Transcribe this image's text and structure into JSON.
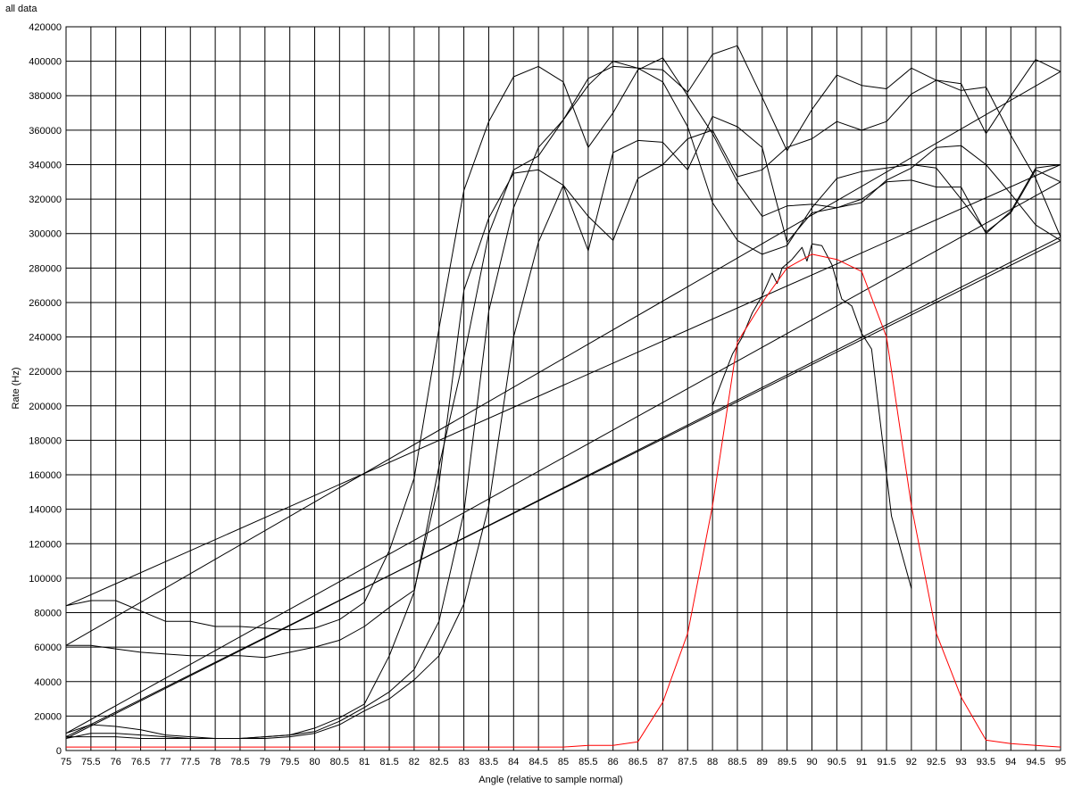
{
  "chart_data": {
    "type": "line",
    "title": "all data",
    "xlabel": "Angle (relative to sample normal)",
    "ylabel": "Rate (Hz)",
    "xlim": [
      75,
      95
    ],
    "ylim": [
      0,
      420000
    ],
    "x_ticks": [
      "75",
      "75.5",
      "76",
      "76.5",
      "77",
      "77.5",
      "78",
      "78.5",
      "79",
      "79.5",
      "80",
      "80.5",
      "81",
      "81.5",
      "82",
      "82.5",
      "83",
      "83.5",
      "84",
      "84.5",
      "85",
      "85.5",
      "86",
      "86.5",
      "87",
      "87.5",
      "88",
      "88.5",
      "89",
      "89.5",
      "90",
      "90.5",
      "91",
      "91.5",
      "92",
      "92.5",
      "93",
      "93.5",
      "94",
      "94.5",
      "95"
    ],
    "y_ticks": [
      "0",
      "20000",
      "40000",
      "60000",
      "80000",
      "100000",
      "120000",
      "140000",
      "160000",
      "180000",
      "200000",
      "220000",
      "240000",
      "260000",
      "280000",
      "300000",
      "320000",
      "340000",
      "360000",
      "380000",
      "400000",
      "420000"
    ],
    "grid": true,
    "legend": "none",
    "series": [
      {
        "color": "#000000",
        "x": [
          75,
          75.5,
          76,
          76.5,
          77,
          77.5,
          78,
          78.5,
          79,
          79.5,
          80,
          80.5,
          81,
          81.5,
          82,
          82.5,
          83,
          83.5,
          84,
          84.5,
          85,
          85.5,
          86,
          86.5,
          87,
          87.5,
          88,
          88.5,
          89,
          89.5,
          90,
          90.5,
          91,
          91.5,
          92,
          92.5,
          93,
          93.5,
          94,
          94.5,
          95,
          75
        ],
        "y": [
          84000,
          87000,
          87000,
          81000,
          75000,
          75000,
          72000,
          72000,
          71000,
          70000,
          71000,
          76000,
          86000,
          116000,
          158000,
          245000,
          325000,
          365000,
          391000,
          397000,
          388000,
          350000,
          370000,
          395000,
          402000,
          380000,
          358000,
          330000,
          310000,
          316000,
          317000,
          315000,
          320000,
          330000,
          331000,
          327000,
          327000,
          300000,
          313000,
          338000,
          340000,
          84000
        ]
      },
      {
        "color": "#000000",
        "x": [
          75,
          75.5,
          76,
          76.5,
          77,
          77.5,
          78,
          78.5,
          79,
          79.5,
          80,
          80.5,
          81,
          81.5,
          82,
          82.5,
          83,
          83.5,
          84,
          84.5,
          85,
          85.5,
          86,
          86.5,
          87,
          87.5,
          88,
          88.5,
          89,
          89.5,
          90,
          90.5,
          91,
          91.5,
          92,
          92.5,
          93,
          93.5,
          94,
          94.5,
          95,
          75
        ],
        "y": [
          61000,
          61000,
          59000,
          57000,
          56000,
          55000,
          55000,
          55000,
          54000,
          57000,
          60000,
          64000,
          72000,
          83000,
          93000,
          155000,
          267000,
          309000,
          335000,
          337000,
          328000,
          310000,
          296000,
          332000,
          340000,
          355000,
          360000,
          333000,
          337000,
          350000,
          355000,
          365000,
          360000,
          365000,
          381000,
          389000,
          387000,
          358000,
          380000,
          401000,
          394000,
          61000
        ]
      },
      {
        "color": "#000000",
        "x": [
          75,
          75.5,
          76,
          76.5,
          77,
          77.5,
          78,
          78.5,
          79,
          79.5,
          80,
          80.5,
          81,
          81.5,
          82,
          82.5,
          83,
          83.5,
          84,
          84.5,
          85,
          85.5,
          86,
          86.5,
          87,
          87.5,
          88,
          88.5,
          89,
          89.5,
          90,
          90.5,
          91,
          91.5,
          92,
          92.5,
          93,
          93.5,
          94,
          94.5,
          95,
          75
        ],
        "y": [
          10000,
          15000,
          14000,
          12000,
          9000,
          8000,
          7000,
          7000,
          8000,
          9000,
          13000,
          19000,
          27000,
          55000,
          92000,
          165000,
          228000,
          300000,
          337000,
          345000,
          366000,
          386000,
          400000,
          396000,
          388000,
          362000,
          318000,
          296000,
          288000,
          293000,
          315000,
          332000,
          336000,
          338000,
          340000,
          338000,
          320000,
          301000,
          312000,
          337000,
          330000,
          10000
        ]
      },
      {
        "color": "#000000",
        "x": [
          75,
          75.5,
          76,
          76.5,
          77,
          77.5,
          78,
          78.5,
          79,
          79.5,
          80,
          80.5,
          81,
          81.5,
          82,
          82.5,
          83,
          83.5,
          84,
          84.5,
          85,
          85.5,
          86,
          86.5,
          87,
          87.5,
          88,
          88.5,
          89,
          89.5,
          90,
          90.5,
          91,
          91.5,
          92,
          92.5,
          93,
          93.5,
          94,
          94.5,
          95,
          75
        ],
        "y": [
          7000,
          10000,
          10000,
          9000,
          8000,
          7000,
          7000,
          7000,
          8000,
          9000,
          11000,
          17000,
          25000,
          34000,
          47000,
          75000,
          138000,
          255000,
          315000,
          350000,
          366000,
          390000,
          397000,
          396000,
          395000,
          382000,
          404000,
          409000,
          379000,
          348000,
          372000,
          392000,
          386000,
          384000,
          396000,
          389000,
          383000,
          385000,
          357000,
          332000,
          298000,
          7000
        ]
      },
      {
        "color": "#000000",
        "x": [
          75,
          75.5,
          76,
          76.5,
          77,
          77.5,
          78,
          78.5,
          79,
          79.5,
          80,
          80.5,
          81,
          81.5,
          82,
          82.5,
          83,
          83.5,
          84,
          84.5,
          85,
          85.5,
          86,
          86.5,
          87,
          87.5,
          88,
          88.5,
          89,
          89.5,
          90,
          90.5,
          91,
          91.5,
          92,
          92.5,
          93,
          93.5,
          94,
          94.5,
          95,
          75
        ],
        "y": [
          8000,
          8000,
          8000,
          7000,
          7000,
          7000,
          7000,
          7000,
          7000,
          8000,
          10000,
          15000,
          23000,
          30000,
          41000,
          55000,
          85000,
          142000,
          240000,
          295000,
          328000,
          290000,
          347000,
          354000,
          353000,
          337000,
          368000,
          362000,
          350000,
          295000,
          312000,
          315000,
          318000,
          331000,
          338000,
          350000,
          351000,
          340000,
          323000,
          305000,
          296000,
          8000
        ]
      },
      {
        "color": "#000000",
        "x": [
          88,
          88.2,
          88.4,
          88.6,
          88.8,
          89,
          89.2,
          89.3,
          89.4,
          89.6,
          89.8,
          89.9,
          90,
          90.2,
          90.4,
          90.6,
          90.8,
          91,
          91.2,
          91.6,
          92
        ],
        "y": [
          200000,
          215000,
          230000,
          240000,
          254000,
          264000,
          277000,
          271000,
          280000,
          285000,
          292000,
          284000,
          294000,
          293000,
          282000,
          262000,
          258000,
          242000,
          233000,
          136000,
          94000
        ]
      },
      {
        "color": "#ff0000",
        "x": [
          75,
          75.5,
          76,
          76.5,
          77,
          77.5,
          78,
          78.5,
          79,
          79.5,
          80,
          80.5,
          81,
          81.5,
          82,
          82.5,
          83,
          83.5,
          84,
          84.5,
          85,
          85.5,
          86,
          86.5,
          87,
          87.5,
          88,
          88.5,
          89,
          89.5,
          90,
          90.5,
          91,
          91.5,
          92,
          92.5,
          93,
          93.5,
          94,
          94.5,
          95
        ],
        "y": [
          2000,
          2000,
          2000,
          2000,
          2000,
          2000,
          2000,
          2000,
          2000,
          2000,
          2000,
          2000,
          2000,
          2000,
          2000,
          2000,
          2000,
          2000,
          2000,
          2000,
          2000,
          3000,
          3000,
          5000,
          28000,
          68000,
          142000,
          237000,
          260000,
          280000,
          288000,
          285000,
          278000,
          240000,
          142000,
          68000,
          31000,
          6000,
          4000,
          3000,
          2000
        ]
      }
    ]
  }
}
